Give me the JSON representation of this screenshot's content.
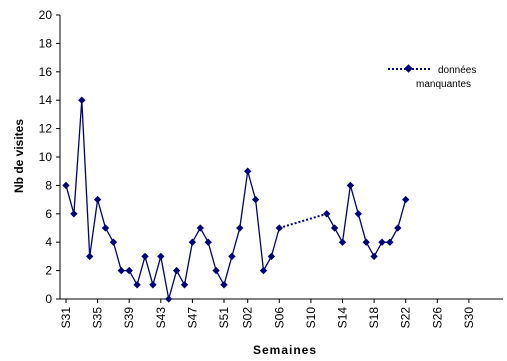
{
  "chart_data": {
    "type": "line",
    "xlabel": "Semaines",
    "ylabel": "Nb de visites",
    "ylim": [
      0,
      20
    ],
    "yticks": [
      0,
      2,
      4,
      6,
      8,
      10,
      12,
      14,
      16,
      18,
      20
    ],
    "grid": false,
    "legend_position": "top-right",
    "x_tick_labels": [
      "S31",
      "S35",
      "S39",
      "S43",
      "S47",
      "S51",
      "S02",
      "S06",
      "S10",
      "S14",
      "S18",
      "S22",
      "S26",
      "S30"
    ],
    "series": [
      {
        "name": "",
        "color": "#000080",
        "x": [
          "S31",
          "S32",
          "S33",
          "S34",
          "S35",
          "S36",
          "S37",
          "S38",
          "S39",
          "S40",
          "S41",
          "S42",
          "S43",
          "S44",
          "S45",
          "S46",
          "S47",
          "S48",
          "S49",
          "S50",
          "S51",
          "S52",
          "S01",
          "S02",
          "S03",
          "S04",
          "S05"
        ],
        "values": [
          8,
          6,
          14,
          3,
          7,
          5,
          4,
          2,
          2,
          1,
          3,
          1,
          3,
          0,
          2,
          1,
          4,
          5,
          4,
          2,
          1,
          3,
          5,
          9,
          7,
          2,
          3
        ]
      },
      {
        "name": "",
        "color": "#000080",
        "x": [
          "S05",
          "S06"
        ],
        "values": [
          3,
          5
        ]
      },
      {
        "name": "données manquantes",
        "color": "#000080",
        "dashed": true,
        "x": [
          "S06",
          "S12"
        ],
        "values": [
          5,
          6
        ]
      },
      {
        "name": "",
        "color": "#000080",
        "x": [
          "S12",
          "S13",
          "S14",
          "S15",
          "S16",
          "S17",
          "S18",
          "S19",
          "S20",
          "S21",
          "S22"
        ],
        "values": [
          6,
          5,
          4,
          8,
          6,
          4,
          3,
          4,
          4,
          5,
          7
        ]
      }
    ],
    "legend": {
      "line1": "données",
      "line2": "manquantes"
    }
  }
}
